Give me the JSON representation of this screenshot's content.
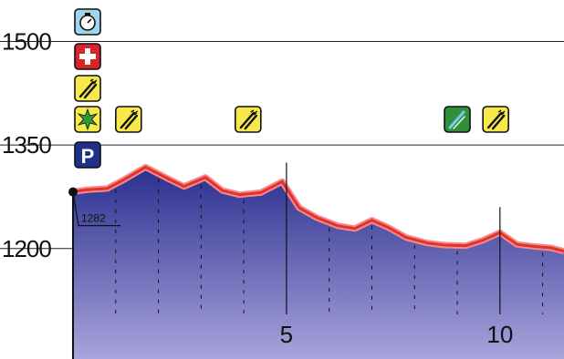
{
  "chart_data": {
    "type": "area",
    "title": "",
    "xlabel": "",
    "ylabel": "",
    "xlim": [
      0,
      11.5
    ],
    "ylim": [
      1040,
      1560
    ],
    "x_ticks": [
      "5",
      "10"
    ],
    "x_tick_values": [
      5,
      10
    ],
    "y_ticks": [
      "1500",
      "1350",
      "1200"
    ],
    "y_tick_values": [
      1500,
      1350,
      1200
    ],
    "grid": "horizontal",
    "start_annotation": "1282",
    "colors": {
      "fill_top": "#2a2f8f",
      "fill_bottom": "#a9a4dc",
      "profile_line": "#e2322d",
      "profile_glow": "#f58a8a",
      "marker": "#111111"
    },
    "series": [
      {
        "x": [
          0,
          0.3,
          0.8,
          1.2,
          1.7,
          2.2,
          2.6,
          3.1,
          3.5,
          3.9,
          4.4,
          4.9,
          5.3,
          5.7,
          6.2,
          6.6,
          7.0,
          7.4,
          7.8,
          8.3,
          8.7,
          9.2,
          9.6,
          10.0,
          10.4,
          10.8,
          11.2,
          11.5
        ],
        "y": [
          1282,
          1285,
          1287,
          1300,
          1318,
          1302,
          1290,
          1303,
          1284,
          1278,
          1281,
          1297,
          1259,
          1245,
          1233,
          1229,
          1241,
          1230,
          1216,
          1208,
          1205,
          1204,
          1212,
          1223,
          1206,
          1203,
          1201,
          1196
        ]
      }
    ],
    "poi_rows": [
      {
        "altitude_band": 1500,
        "icons": [
          {
            "x": 0,
            "icon": "viewpoint-icon"
          }
        ]
      },
      {
        "altitude_band": 1460,
        "icons": [
          {
            "x": 0,
            "icon": "first-aid-icon"
          }
        ]
      },
      {
        "altitude_band": 1420,
        "icons": [
          {
            "x": 0,
            "icon": "restaurant-icon"
          }
        ]
      },
      {
        "altitude_band": 1380,
        "icons": [
          {
            "x": 0,
            "icon": "attraction-icon"
          },
          {
            "x": 1.3,
            "icon": "restaurant-icon"
          },
          {
            "x": 4.1,
            "icon": "restaurant-icon"
          },
          {
            "x": 9.0,
            "icon": "bike-repair-icon"
          },
          {
            "x": 9.9,
            "icon": "restaurant-icon"
          }
        ]
      },
      {
        "altitude_band": 1330,
        "icons": [
          {
            "x": 0,
            "icon": "parking-icon"
          }
        ]
      }
    ]
  }
}
